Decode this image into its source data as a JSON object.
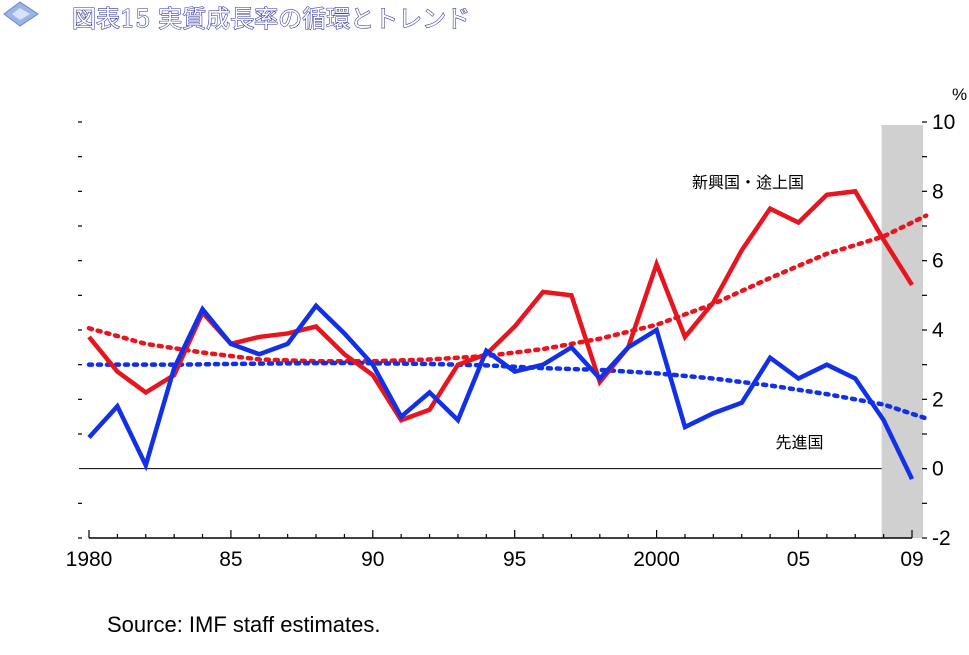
{
  "chart_data": {
    "type": "line",
    "title": "図表15 実質成長率の循環とトレンド",
    "unit": "%",
    "source": "Source: IMF staff estimates.",
    "x_ticks": [
      {
        "year": 1980,
        "label": "1980"
      },
      {
        "year": 1985,
        "label": "85"
      },
      {
        "year": 1990,
        "label": "90"
      },
      {
        "year": 1995,
        "label": "95"
      },
      {
        "year": 2000,
        "label": "2000"
      },
      {
        "year": 2005,
        "label": "05"
      },
      {
        "year": 2009,
        "label": "09"
      }
    ],
    "y_ticks": [
      {
        "value": 10,
        "label": "10"
      },
      {
        "value": 8,
        "label": "8"
      },
      {
        "value": 6,
        "label": "6"
      },
      {
        "value": 4,
        "label": "4"
      },
      {
        "value": 2,
        "label": "2"
      },
      {
        "value": 0,
        "label": "0"
      },
      {
        "value": -2,
        "label": "-2"
      }
    ],
    "xlim": [
      1980,
      2009
    ],
    "ylim": [
      -2,
      10
    ],
    "shaded_region": [
      2008,
      2009
    ],
    "zero_line": 0,
    "x": [
      1980,
      1981,
      1982,
      1983,
      1984,
      1985,
      1986,
      1987,
      1988,
      1989,
      1990,
      1991,
      1992,
      1993,
      1994,
      1995,
      1996,
      1997,
      1998,
      1999,
      2000,
      2001,
      2002,
      2003,
      2004,
      2005,
      2006,
      2007,
      2008,
      2009
    ],
    "series": [
      {
        "name": "新興国・途上国",
        "color": "#e8141e",
        "style": "solid",
        "values": [
          3.8,
          2.8,
          2.2,
          2.7,
          4.5,
          3.6,
          3.8,
          3.9,
          4.1,
          3.3,
          2.7,
          1.4,
          1.7,
          3.0,
          3.3,
          4.1,
          5.1,
          5.0,
          2.5,
          3.5,
          5.9,
          3.8,
          4.8,
          6.3,
          7.5,
          7.1,
          7.9,
          8.0,
          6.6,
          5.3
        ]
      },
      {
        "name": "先進国",
        "color": "#1230e8",
        "style": "solid",
        "values": [
          0.9,
          1.8,
          0.1,
          2.9,
          4.6,
          3.6,
          3.3,
          3.6,
          4.7,
          3.9,
          3.0,
          1.5,
          2.2,
          1.4,
          3.4,
          2.8,
          3.0,
          3.5,
          2.6,
          3.5,
          4.0,
          1.2,
          1.6,
          1.9,
          3.2,
          2.6,
          3.0,
          2.6,
          1.4,
          -0.3
        ]
      }
    ],
    "trends": [
      {
        "color": "#e8141e",
        "style": "dotted",
        "values": [
          4.05,
          3.6,
          3.35,
          3.15,
          3.1,
          3.1,
          3.15,
          3.25,
          3.45,
          3.75,
          4.15,
          4.75,
          5.5,
          6.2,
          6.7,
          7.3
        ],
        "x": [
          1980,
          1982,
          1984,
          1986,
          1988,
          1990,
          1992,
          1994,
          1996,
          1998,
          2000,
          2002,
          2004,
          2006,
          2008,
          2009.5
        ]
      },
      {
        "color": "#1230e8",
        "style": "dotted",
        "values": [
          3.0,
          3.0,
          3.03,
          3.05,
          3.02,
          2.98,
          2.9,
          2.85,
          2.75,
          2.6,
          2.4,
          2.15,
          1.85,
          1.45
        ],
        "x": [
          1980,
          1983,
          1986,
          1989,
          1992,
          1994,
          1996,
          1998,
          2000,
          2002,
          2004,
          2006,
          2008,
          2009.5
        ]
      }
    ],
    "annotations": [
      {
        "text": "新興国・途上国",
        "year": 2005.3,
        "value": 8.1
      },
      {
        "text": "先進国",
        "year": 2005.6,
        "value": 0.6
      }
    ]
  }
}
